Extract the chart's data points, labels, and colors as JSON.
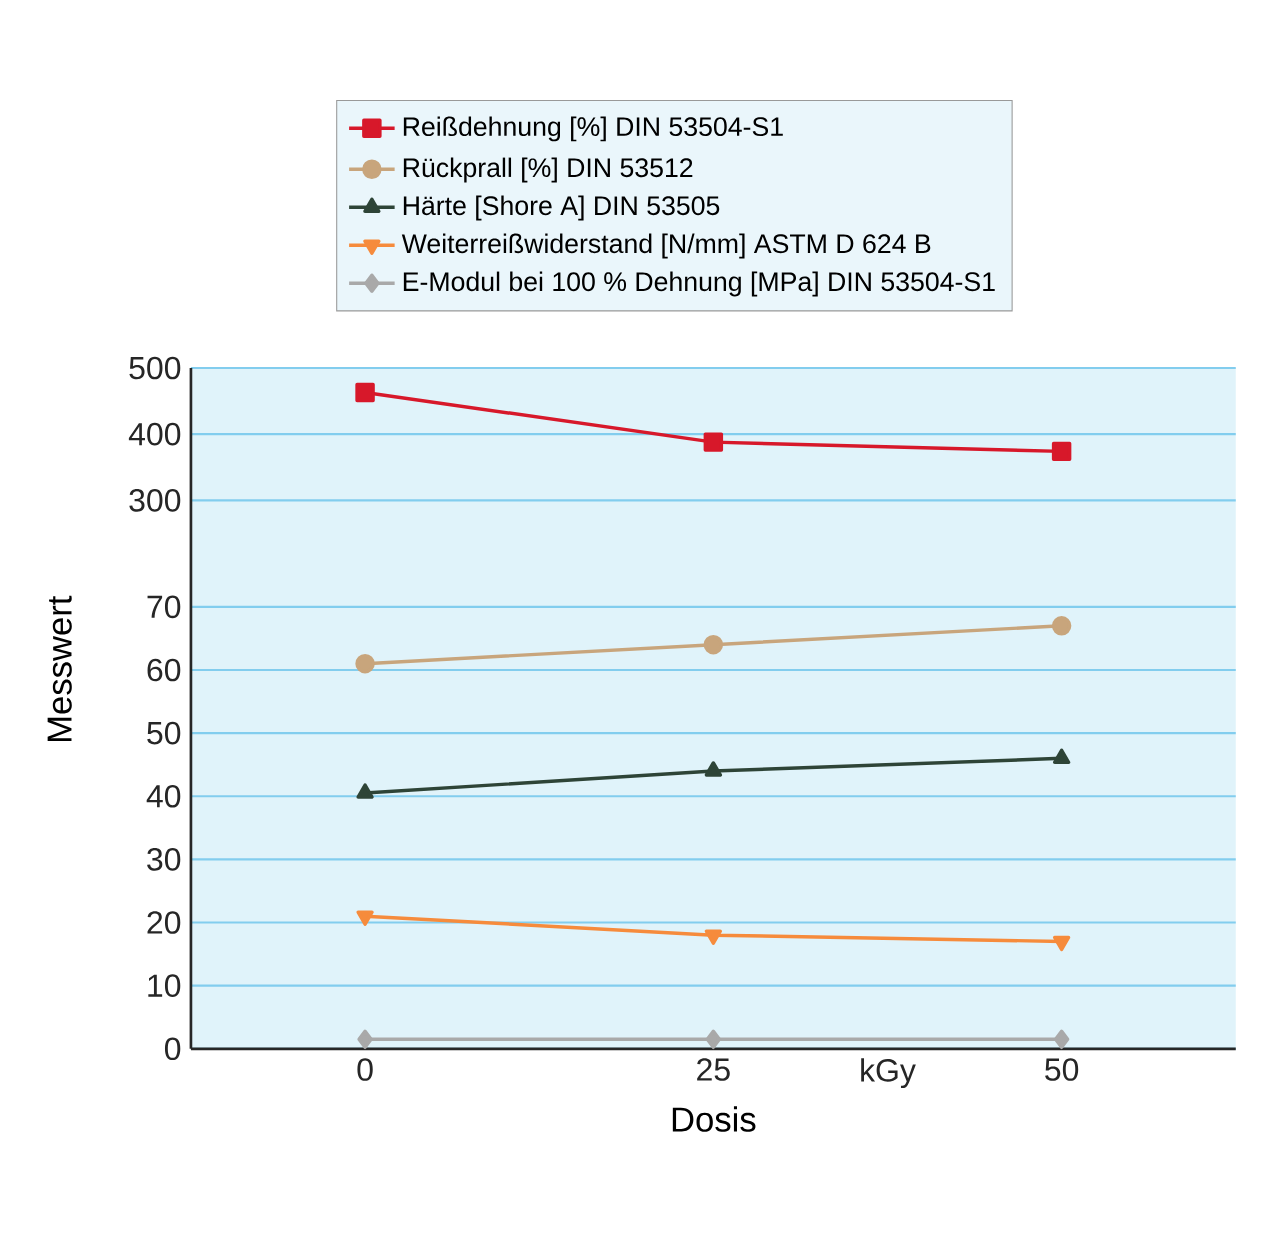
{
  "chart_data": [
    {
      "type": "line",
      "xlim": [
        -12.5,
        62.5
      ],
      "ylim": [
        225,
        500
      ],
      "yticks": [
        300,
        400,
        500
      ],
      "grid": "y",
      "tick_labels": "y",
      "legend": "top",
      "x": [
        0,
        25,
        50
      ],
      "series": [
        {
          "name": "Reißdehnung [%] DIN 53504-S1",
          "color": "#d7182a",
          "marker": "square",
          "values": [
            463,
            388,
            374
          ]
        }
      ]
    },
    {
      "type": "line",
      "xlim": [
        -12.5,
        62.5
      ],
      "ylim": [
        0,
        79
      ],
      "xticks": [
        0,
        25,
        {
          "value": 37.5,
          "label": "kGy"
        },
        50
      ],
      "yticks": [
        0,
        10,
        20,
        30,
        40,
        50,
        60,
        70
      ],
      "grid": "y",
      "legend": "top",
      "xlabel": "Dosis",
      "ylabel": "Messwert",
      "x": [
        0,
        25,
        50
      ],
      "series": [
        {
          "name": "Rückprall [%] DIN 53512",
          "color": "#c8a57c",
          "marker": "circle",
          "values": [
            61,
            64,
            67
          ]
        },
        {
          "name": "Härte [Shore A] DIN 53505",
          "color": "#2e4437",
          "marker": "triangle",
          "values": [
            40.5,
            44,
            46
          ]
        },
        {
          "name": "Weiterreißwiderstand [N/mm] ASTM D 624 B",
          "color": "#f68b3c",
          "marker": "triangle-down",
          "values": [
            21,
            18,
            17
          ]
        },
        {
          "name": "E-Modul bei 100 % Dehnung [MPa] DIN 53504-S1",
          "color": "#a9a9a9",
          "marker": "diamond",
          "values": [
            1.5,
            1.5,
            1.5
          ]
        }
      ]
    }
  ]
}
